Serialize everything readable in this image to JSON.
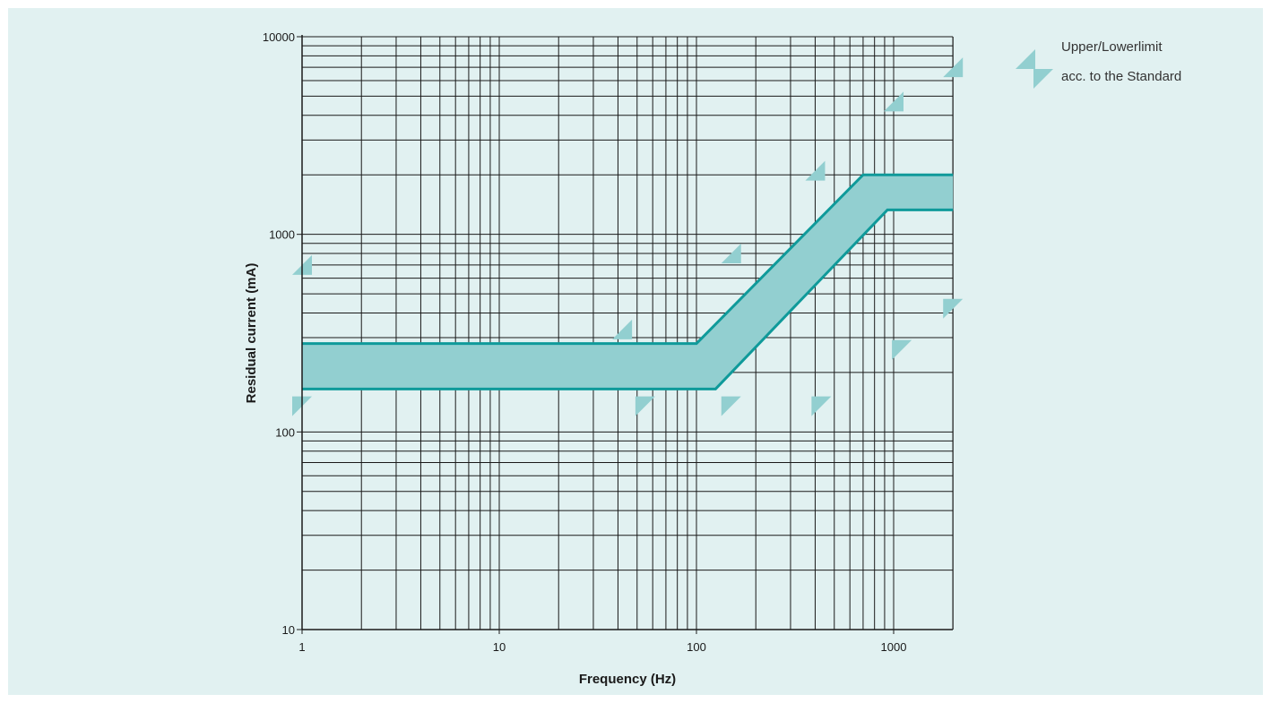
{
  "chart_data": {
    "type": "area",
    "xlabel": "Frequency (Hz)",
    "ylabel": "Residual current (mA)",
    "x_scale": "log",
    "y_scale": "log",
    "xlim": [
      1,
      2000
    ],
    "ylim": [
      10,
      10000
    ],
    "x_ticks": [
      "1",
      "10",
      "100",
      "1000"
    ],
    "y_ticks": [
      "10",
      "100",
      "1000",
      "10000"
    ],
    "grid": true,
    "legend_position": "top-right",
    "legend": {
      "line1": "Upper/Lowerlimit",
      "line2": "acc. to the Standard"
    },
    "series": [
      {
        "x": [
          1,
          100,
          700,
          2000
        ],
        "y": [
          280,
          280,
          2000,
          2000
        ]
      },
      {
        "x": [
          1,
          125,
          930,
          2000
        ],
        "y": [
          165,
          165,
          1330,
          1330
        ]
      }
    ],
    "colors": {
      "band_fill": "#92cfd0",
      "band_line": "#0f9a9a",
      "marker": "#92cfd0",
      "background": "#e1f1f1",
      "grid": "#1a1a1a"
    },
    "upper_markers": [
      {
        "x": 1,
        "y": 700
      },
      {
        "x": 42,
        "y": 330
      },
      {
        "x": 150,
        "y": 800
      },
      {
        "x": 400,
        "y": 2100
      },
      {
        "x": 1000,
        "y": 4700
      },
      {
        "x": 2000,
        "y": 7000
      }
    ],
    "lower_markers": [
      {
        "x": 1,
        "y": 135
      },
      {
        "x": 55,
        "y": 135
      },
      {
        "x": 150,
        "y": 135
      },
      {
        "x": 430,
        "y": 135
      },
      {
        "x": 1100,
        "y": 260
      },
      {
        "x": 2000,
        "y": 420
      }
    ]
  }
}
